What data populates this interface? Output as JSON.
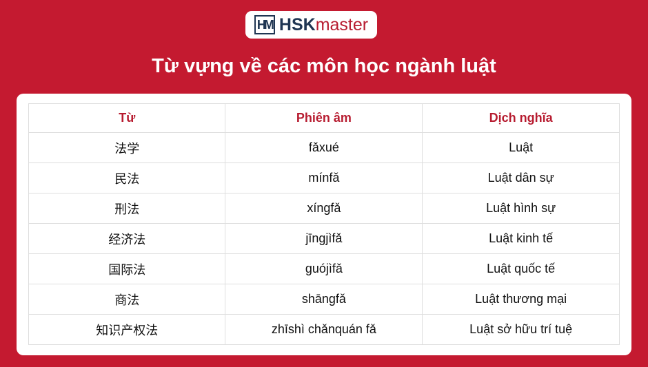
{
  "logo": {
    "mark": "HM",
    "brand_a": "HSK",
    "brand_b": "master"
  },
  "title": "Từ vựng về các môn học ngành luật",
  "colors": {
    "background": "#c41a30",
    "header_text": "#b71c30",
    "logo_navy": "#1f3552"
  },
  "table": {
    "headers": [
      "Từ",
      "Phiên âm",
      "Dịch nghĩa"
    ],
    "rows": [
      [
        "法学",
        "fǎxué",
        "Luật"
      ],
      [
        "民法",
        "mínfǎ",
        "Luật dân sự"
      ],
      [
        "刑法",
        "xíngfǎ",
        "Luật hình sự"
      ],
      [
        "经济法",
        "jīngjìfǎ",
        "Luật kinh tế"
      ],
      [
        "国际法",
        "guójìfǎ",
        "Luật quốc tế"
      ],
      [
        "商法",
        "shāngfǎ",
        "Luật thương mại"
      ],
      [
        "知识产权法",
        "zhīshì chǎnquán fǎ",
        "Luật sở hữu trí tuệ"
      ]
    ]
  }
}
